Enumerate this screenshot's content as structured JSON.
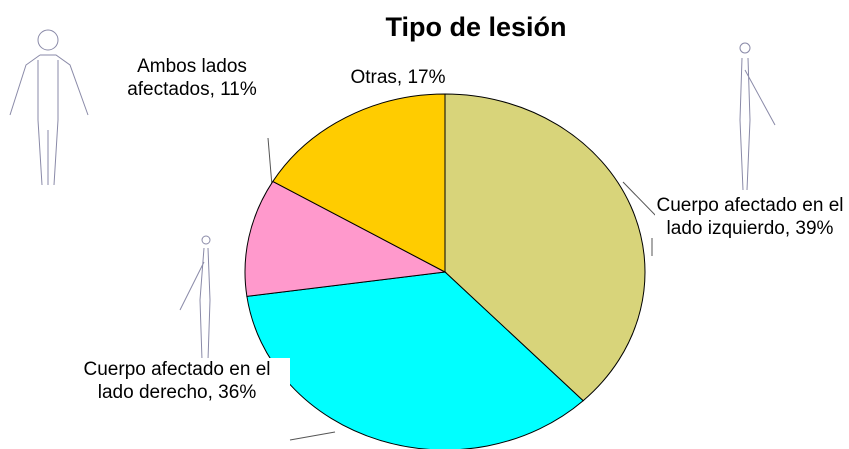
{
  "chart_data": {
    "type": "pie",
    "title": "Tipo de lesión",
    "labels": [
      "Cuerpo afectado en el lado izquierdo, 39%",
      "Cuerpo afectado en el lado derecho, 36%",
      "Ambos lados afectados, 11%",
      "Otras, 17%"
    ],
    "values": [
      39,
      36,
      11,
      17
    ],
    "colors": [
      "#d8d47a",
      "#00ffff",
      "#ff99cc",
      "#ffcc00"
    ]
  }
}
